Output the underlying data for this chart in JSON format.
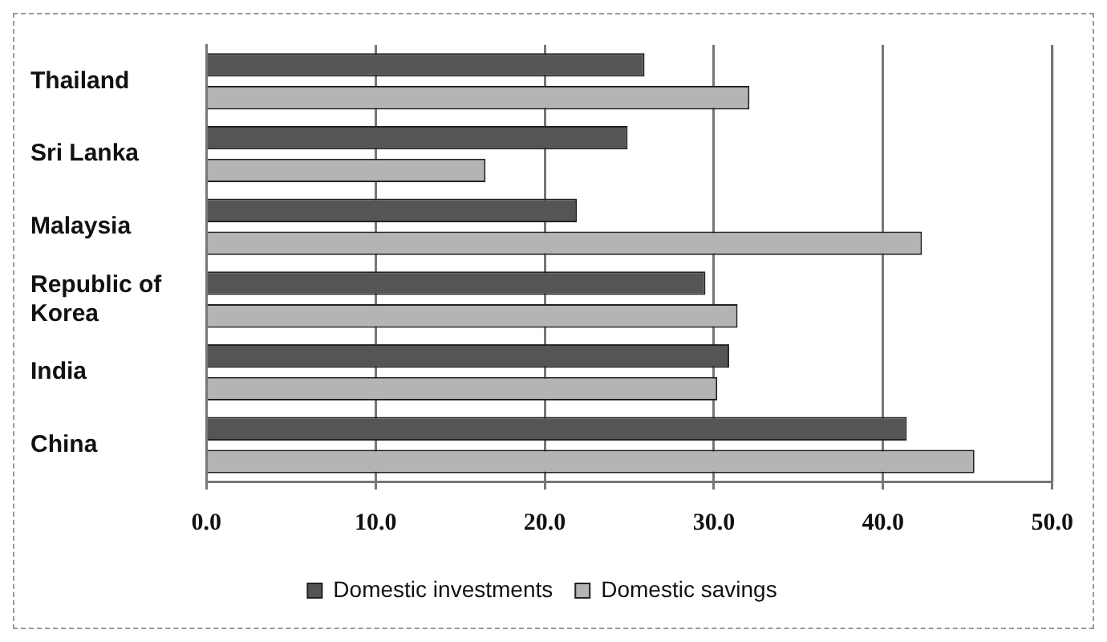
{
  "chart_data": {
    "type": "bar",
    "orientation": "horizontal",
    "categories": [
      "Thailand",
      "Sri Lanka",
      "Malaysia",
      "Republic of Korea",
      "India",
      "China"
    ],
    "series": [
      {
        "name": "Domestic investments",
        "color": "#555555",
        "values": [
          25.9,
          24.9,
          21.9,
          29.5,
          30.9,
          41.4
        ]
      },
      {
        "name": "Domestic savings",
        "color": "#b4b4b4",
        "values": [
          32.1,
          16.5,
          42.3,
          31.4,
          30.2,
          45.4
        ]
      }
    ],
    "xlim": [
      0,
      50
    ],
    "xticks": [
      {
        "value": 0,
        "label": "0.0"
      },
      {
        "value": 10,
        "label": "10.0"
      },
      {
        "value": 20,
        "label": "20.0"
      },
      {
        "value": 30,
        "label": "30.0"
      },
      {
        "value": 40,
        "label": "40.0"
      },
      {
        "value": 50,
        "label": "50.0"
      }
    ],
    "grid": "x",
    "legend": "bottom"
  }
}
